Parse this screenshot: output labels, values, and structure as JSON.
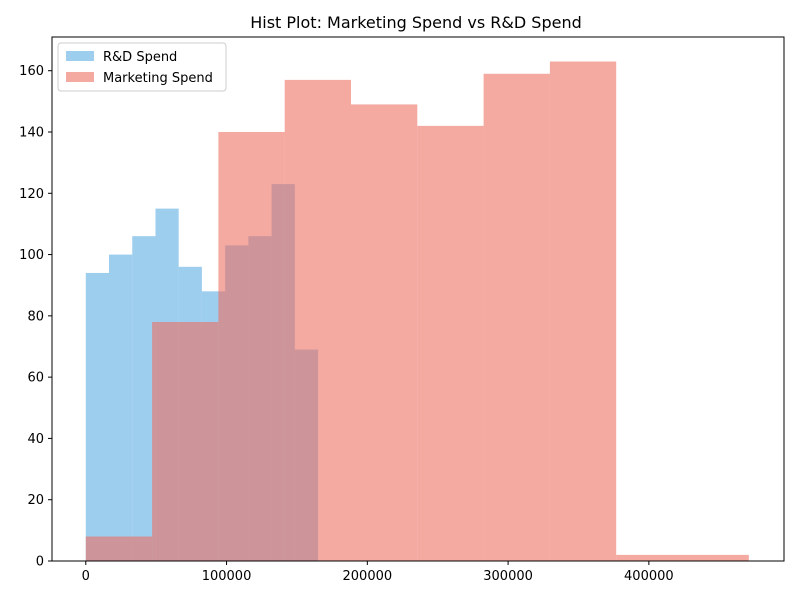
{
  "chart_data": {
    "type": "histogram",
    "title": "Hist Plot: Marketing Spend vs R&D Spend",
    "xlabel": "",
    "ylabel": "",
    "xlim": [
      -24000,
      496000
    ],
    "ylim": [
      0,
      171
    ],
    "x_ticks": [
      0,
      100000,
      200000,
      300000,
      400000
    ],
    "x_tick_labels": [
      "0",
      "100000",
      "200000",
      "300000",
      "400000"
    ],
    "y_ticks": [
      0,
      20,
      40,
      60,
      80,
      100,
      120,
      140,
      160
    ],
    "y_tick_labels": [
      "0",
      "20",
      "40",
      "60",
      "80",
      "100",
      "120",
      "140",
      "160"
    ],
    "legend_position": "top-left",
    "series": [
      {
        "name": "R&D Spend",
        "color": "#5DADE2",
        "opacity": 0.6,
        "bins": [
          {
            "x0": 0,
            "x1": 16500,
            "count": 94
          },
          {
            "x0": 16500,
            "x1": 33000,
            "count": 100
          },
          {
            "x0": 33000,
            "x1": 49500,
            "count": 106
          },
          {
            "x0": 49500,
            "x1": 66000,
            "count": 115
          },
          {
            "x0": 66000,
            "x1": 82500,
            "count": 96
          },
          {
            "x0": 82500,
            "x1": 99000,
            "count": 88
          },
          {
            "x0": 99000,
            "x1": 115500,
            "count": 103
          },
          {
            "x0": 115500,
            "x1": 132000,
            "count": 106
          },
          {
            "x0": 132000,
            "x1": 148500,
            "count": 123
          },
          {
            "x0": 148500,
            "x1": 165000,
            "count": 69
          }
        ]
      },
      {
        "name": "Marketing Spend",
        "color": "#EC7063",
        "opacity": 0.6,
        "bins": [
          {
            "x0": 0,
            "x1": 47100,
            "count": 8
          },
          {
            "x0": 47100,
            "x1": 94200,
            "count": 78
          },
          {
            "x0": 94200,
            "x1": 141300,
            "count": 140
          },
          {
            "x0": 141300,
            "x1": 188400,
            "count": 157
          },
          {
            "x0": 188400,
            "x1": 235500,
            "count": 149
          },
          {
            "x0": 235500,
            "x1": 282600,
            "count": 142
          },
          {
            "x0": 282600,
            "x1": 329700,
            "count": 159
          },
          {
            "x0": 329700,
            "x1": 376800,
            "count": 163
          },
          {
            "x0": 376800,
            "x1": 423900,
            "count": 2
          },
          {
            "x0": 423900,
            "x1": 471000,
            "count": 2
          }
        ]
      }
    ]
  }
}
